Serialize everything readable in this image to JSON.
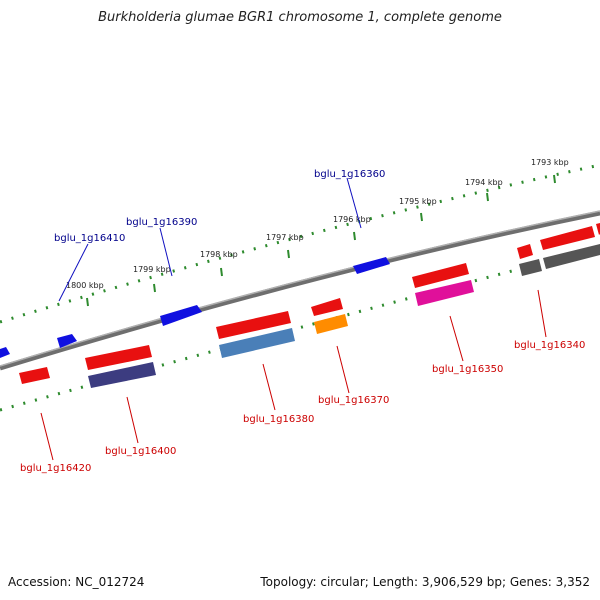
{
  "title": "Burkholderia glumae BGR1 chromosome 1, complete genome",
  "footer": {
    "accession": "Accession: NC_012724",
    "summary": "Topology: circular; Length: 3,906,529 bp; Genes: 3,352"
  },
  "colors": {
    "forward_label": "#00008b",
    "reverse_label": "#cc0000",
    "tick": "#2e8b2e",
    "backbone": "#808080"
  },
  "ticks": [
    "1793 kbp",
    "1794 kbp",
    "1795 kbp",
    "1796 kbp",
    "1797 kbp",
    "1798 kbp",
    "1799 kbp",
    "1800 kbp"
  ],
  "genes": [
    {
      "name": "bglu_1g16360",
      "strand": "+"
    },
    {
      "name": "bglu_1g16390",
      "strand": "+"
    },
    {
      "name": "bglu_1g16410",
      "strand": "+"
    },
    {
      "name": "bglu_1g16340",
      "strand": "-"
    },
    {
      "name": "bglu_1g16350",
      "strand": "-"
    },
    {
      "name": "bglu_1g16370",
      "strand": "-"
    },
    {
      "name": "bglu_1g16380",
      "strand": "-"
    },
    {
      "name": "bglu_1g16400",
      "strand": "-"
    },
    {
      "name": "bglu_1g16420",
      "strand": "-"
    }
  ]
}
